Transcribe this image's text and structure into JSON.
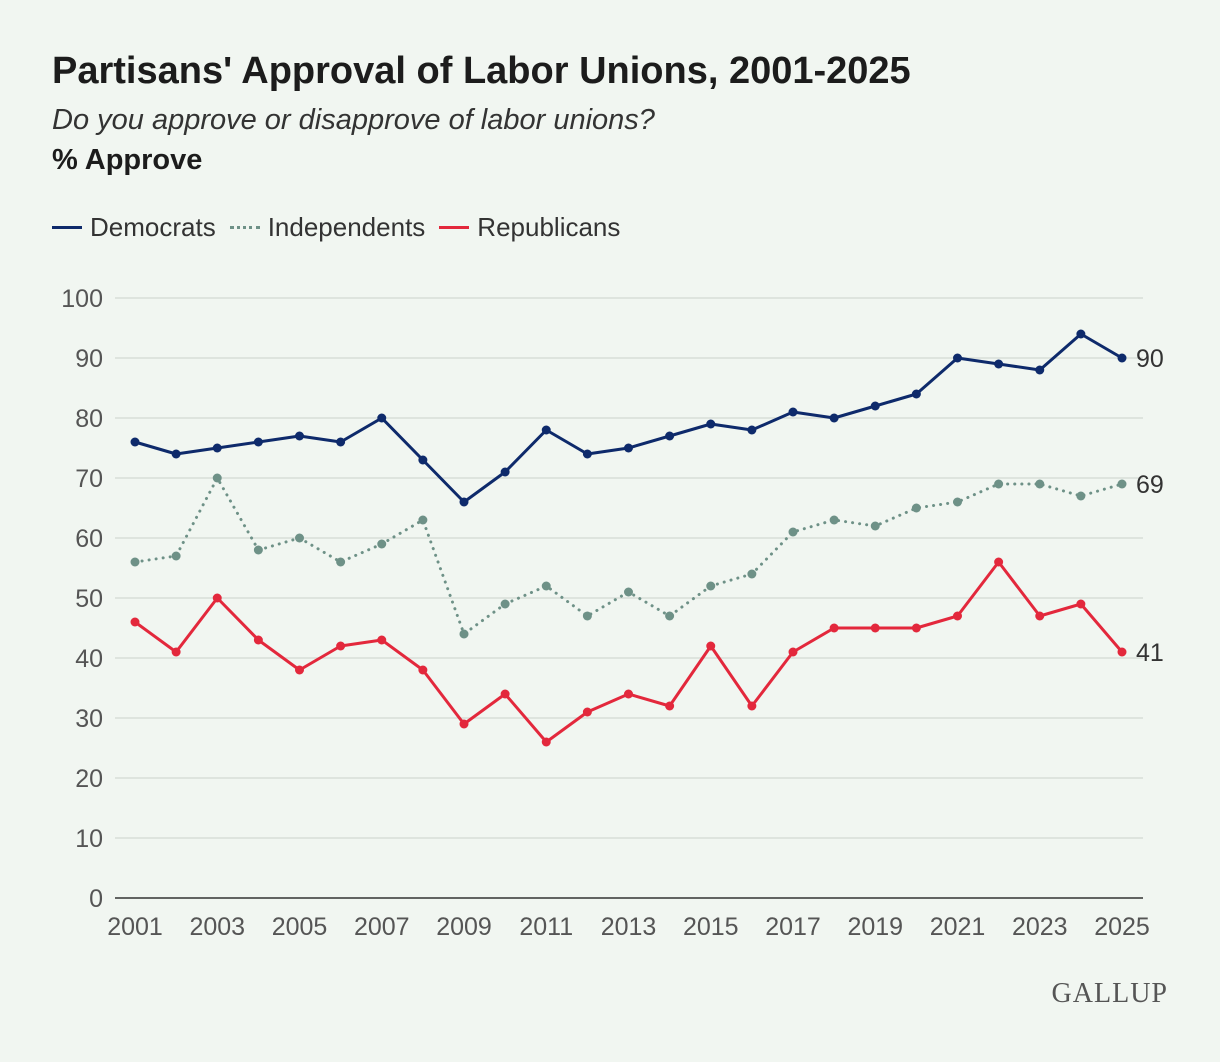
{
  "chart_data": {
    "type": "line",
    "title": "Partisans' Approval of Labor Unions, 2001-2025",
    "subtitle": "Do you approve or disapprove of labor unions?",
    "measure_label": "% Approve",
    "x": [
      2001,
      2002,
      2003,
      2004,
      2005,
      2006,
      2007,
      2008,
      2009,
      2010,
      2011,
      2012,
      2013,
      2014,
      2015,
      2016,
      2017,
      2018,
      2019,
      2020,
      2021,
      2022,
      2023,
      2024,
      2025
    ],
    "x_tick_labels": [
      "2001",
      "2003",
      "2005",
      "2007",
      "2009",
      "2011",
      "2013",
      "2015",
      "2017",
      "2019",
      "2021",
      "2023",
      "2025"
    ],
    "y_tick_labels": [
      "0",
      "10",
      "20",
      "30",
      "40",
      "50",
      "60",
      "70",
      "80",
      "90",
      "100"
    ],
    "ylim": [
      0,
      100
    ],
    "grid": true,
    "legend_position": "top-left",
    "series": [
      {
        "name": "Democrats",
        "color": "#0e2a6b",
        "style": "solid",
        "values": [
          76,
          74,
          75,
          76,
          77,
          76,
          80,
          73,
          66,
          71,
          78,
          74,
          75,
          77,
          79,
          78,
          81,
          80,
          82,
          84,
          90,
          89,
          88,
          94,
          90
        ],
        "end_label": "90"
      },
      {
        "name": "Independents",
        "color": "#6e9187",
        "style": "dotted",
        "values": [
          56,
          57,
          70,
          58,
          60,
          56,
          59,
          63,
          44,
          49,
          52,
          47,
          51,
          47,
          52,
          54,
          61,
          63,
          62,
          65,
          66,
          69,
          69,
          67,
          69
        ],
        "end_label": "69"
      },
      {
        "name": "Republicans",
        "color": "#e3283c",
        "style": "solid",
        "values": [
          46,
          41,
          50,
          43,
          38,
          42,
          43,
          38,
          29,
          34,
          26,
          31,
          34,
          32,
          42,
          32,
          41,
          45,
          45,
          45,
          47,
          56,
          47,
          49,
          41
        ],
        "end_label": "41"
      }
    ]
  },
  "brand": "GALLUP"
}
